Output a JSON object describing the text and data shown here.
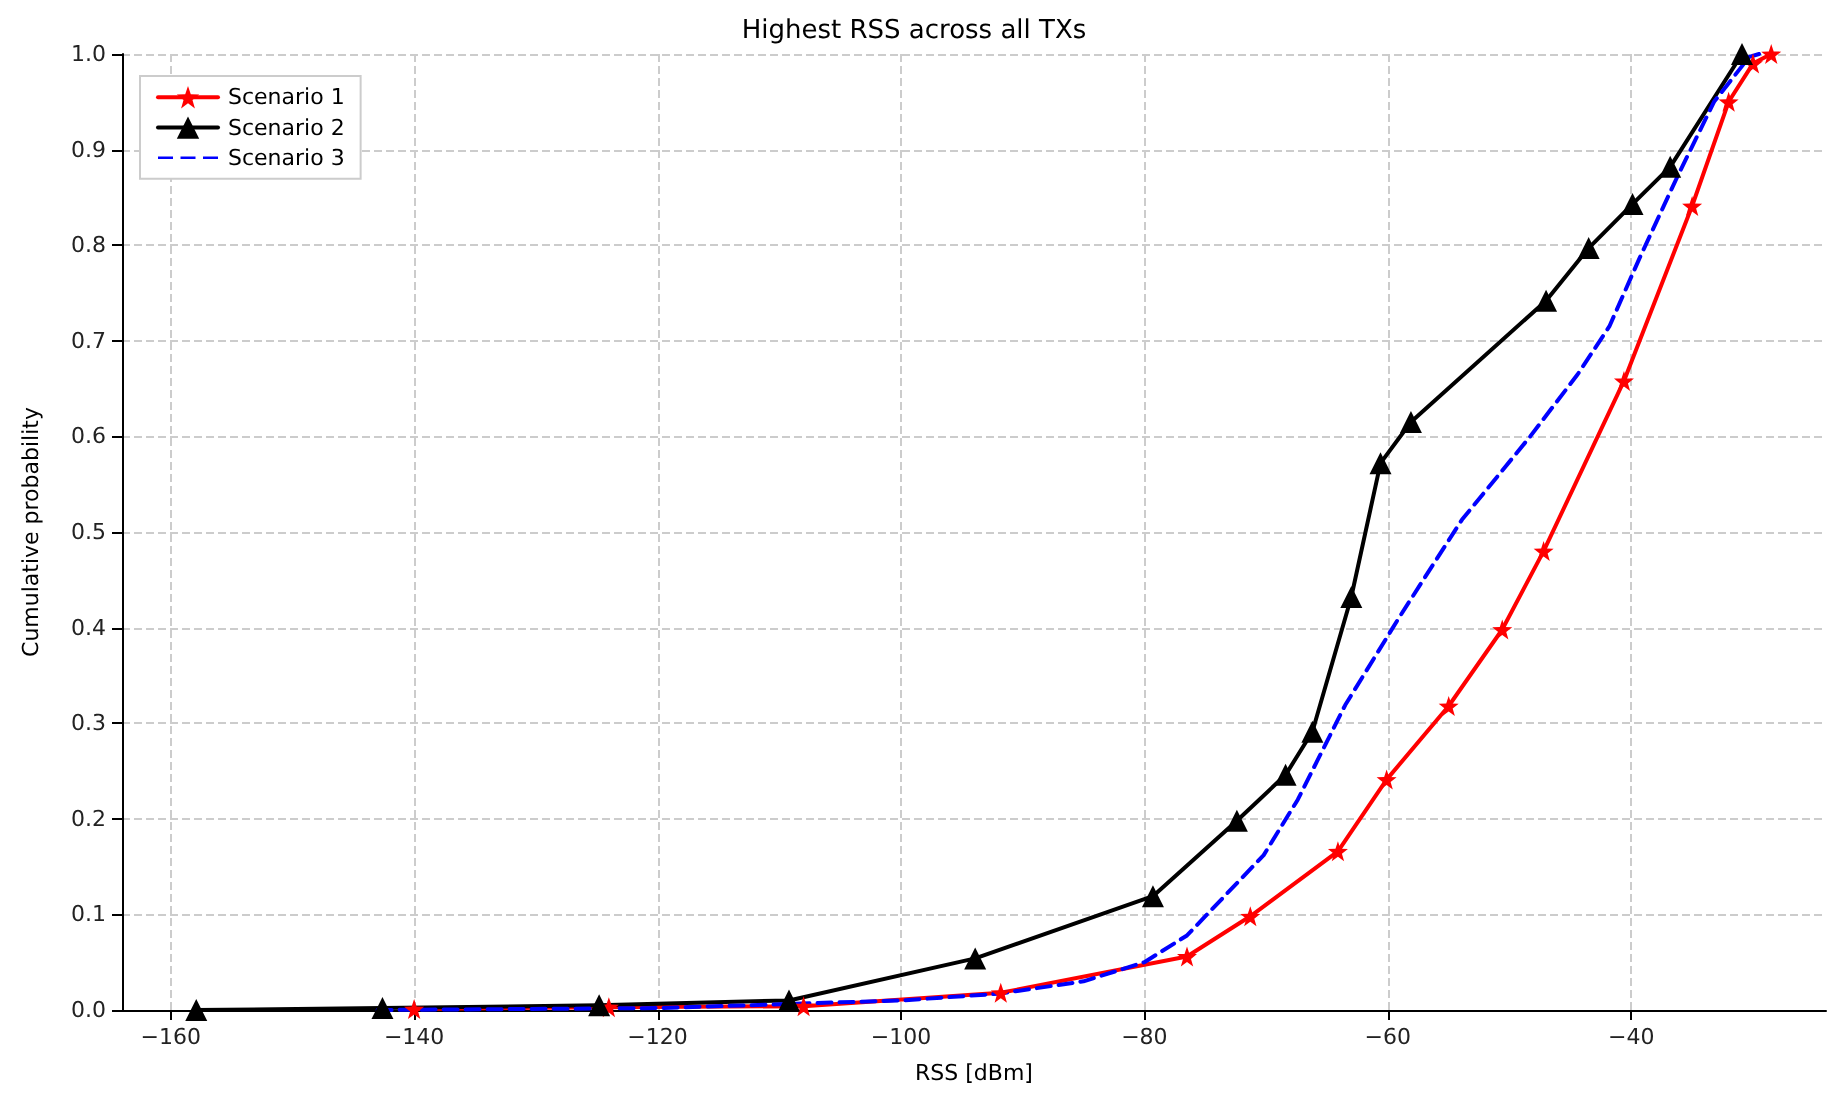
{
  "chart_data": {
    "type": "line",
    "title": "Highest RSS across all TXs",
    "xlabel": "RSS [dBm]",
    "ylabel": "Cumulative probability",
    "xlim": [
      -164,
      -24
    ],
    "xticks": [
      -160,
      -140,
      -120,
      -100,
      -80,
      -60,
      -40
    ],
    "ylim": [
      0,
      1
    ],
    "yticks": [
      {
        "value": 0,
        "label": "0.0"
      },
      0.1,
      0.2,
      0.3,
      0.4,
      0.5,
      0.6,
      0.7,
      0.8,
      0.9,
      {
        "value": 1,
        "label": "1.0"
      }
    ],
    "grid": true,
    "legend": "top left",
    "series": [
      {
        "name": "Scenario 1",
        "color": "#ff0000",
        "marker": "star",
        "line_style": "solid",
        "x": [
          -140,
          -124,
          -108,
          -91.8,
          -76.5,
          -71.3,
          -64.1,
          -60.1,
          -55,
          -50.6,
          -47.2,
          -40.6,
          -35,
          -32,
          -30,
          -28.5
        ],
        "values": [
          0.001,
          0.003,
          0.004,
          0.018,
          0.056,
          0.098,
          0.166,
          0.241,
          0.318,
          0.398,
          0.48,
          0.658,
          0.841,
          0.95,
          0.99,
          1.0
        ]
      },
      {
        "name": "Scenario 2",
        "color": "#000000",
        "marker": "triangle",
        "line_style": "solid",
        "x": [
          -157.9,
          -142.6,
          -124.8,
          -109.2,
          -93.9,
          -79.3,
          -72.4,
          -68.4,
          -66.2,
          -63,
          -60.6,
          -58.1,
          -47,
          -43.5,
          -39.9,
          -36.8,
          -30.9
        ],
        "values": [
          0.0,
          0.002,
          0.005,
          0.01,
          0.054,
          0.119,
          0.198,
          0.246,
          0.291,
          0.432,
          0.572,
          0.615,
          0.742,
          0.797,
          0.843,
          0.882,
          1.0
        ]
      },
      {
        "name": "Scenario 3",
        "color": "#0000ff",
        "marker": "none",
        "line_style": "dashed",
        "x": [
          -143,
          -120,
          -100,
          -92,
          -85,
          -80,
          -76.5,
          -70.2,
          -67.4,
          -63.5,
          -59,
          -53.9,
          -48.3,
          -44.4,
          -41.8,
          -39.3,
          -36.2,
          -33.2,
          -30.3,
          -29.5
        ],
        "values": [
          0.0,
          0.002,
          0.01,
          0.017,
          0.03,
          0.05,
          0.078,
          0.162,
          0.22,
          0.319,
          0.412,
          0.513,
          0.6,
          0.665,
          0.715,
          0.787,
          0.872,
          0.95,
          0.997,
          1.0
        ]
      }
    ]
  }
}
